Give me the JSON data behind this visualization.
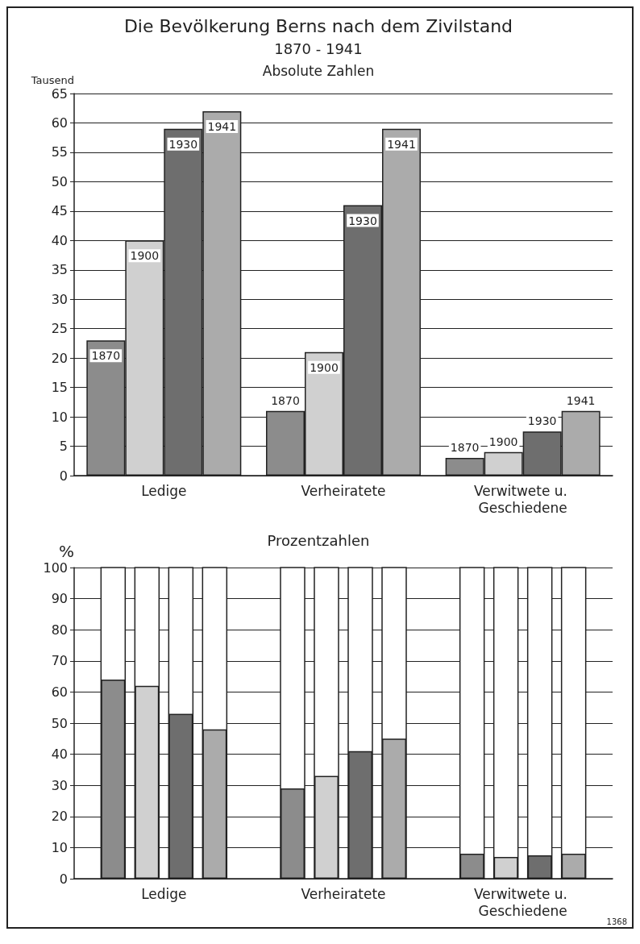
{
  "chart_data": [
    {
      "type": "bar",
      "title": "Die Bevölkerung Berns nach dem Zivilstand",
      "subtitle": "1870 - 1941",
      "annotations": [
        "Absolute Zahlen"
      ],
      "ylabel": "Tausend",
      "categories": [
        "Ledige",
        "Verheiratete",
        "Verwitwete u. Geschiedene"
      ],
      "series": [
        {
          "name": "1870",
          "color": "#8c8c8c",
          "values": [
            23,
            11,
            3
          ]
        },
        {
          "name": "1900",
          "color": "#d0d0d0",
          "values": [
            40,
            21,
            4
          ]
        },
        {
          "name": "1930",
          "color": "#6e6e6e",
          "values": [
            59,
            46,
            7.5
          ]
        },
        {
          "name": "1941",
          "color": "#ababab",
          "values": [
            62,
            59,
            11
          ]
        }
      ],
      "ylim": [
        0,
        65
      ],
      "yticks": [
        0,
        5,
        10,
        15,
        20,
        25,
        30,
        35,
        40,
        45,
        50,
        55,
        60,
        65
      ],
      "grid": "y",
      "legend": false
    },
    {
      "type": "bar",
      "title": "Prozentzahlen",
      "annotations": [
        "1368"
      ],
      "ylabel": "%",
      "categories": [
        "Ledige",
        "Verheiratete",
        "Verwitwete u. Geschiedene"
      ],
      "series": [
        {
          "color": "#8c8c8c",
          "values": [
            64,
            29,
            8
          ]
        },
        {
          "color": "#d0d0d0",
          "values": [
            62,
            33,
            7
          ]
        },
        {
          "color": "#6e6e6e",
          "values": [
            53,
            41,
            7.5
          ]
        },
        {
          "color": "#ababab",
          "values": [
            48,
            45,
            8
          ]
        }
      ],
      "ylim": [
        0,
        100
      ],
      "yticks": [
        0,
        10,
        20,
        30,
        40,
        50,
        60,
        70,
        80,
        90,
        100
      ],
      "grid": "y",
      "legend": false
    }
  ]
}
